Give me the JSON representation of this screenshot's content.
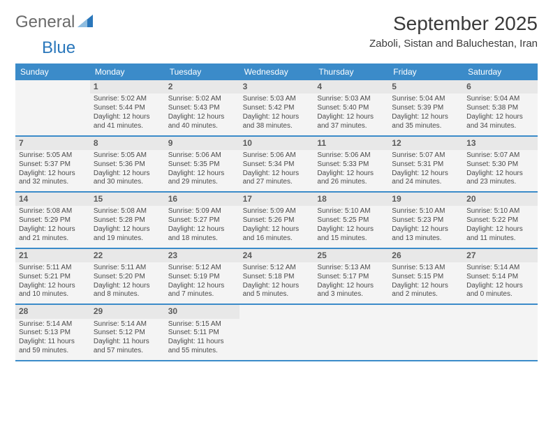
{
  "logo": {
    "part1": "General",
    "part2": "Blue"
  },
  "header": {
    "title": "September 2025",
    "location": "Zaboli, Sistan and Baluchestan, Iran"
  },
  "colors": {
    "header_bg": "#3b8bc9",
    "header_fg": "#ffffff",
    "body_bg": "#ffffff",
    "cell_bg": "#f4f4f4",
    "daynum_bg": "#e8e8e8",
    "text": "#4a4a4a"
  },
  "day_names": [
    "Sunday",
    "Monday",
    "Tuesday",
    "Wednesday",
    "Thursday",
    "Friday",
    "Saturday"
  ],
  "weeks": [
    [
      null,
      {
        "n": "1",
        "sr": "5:02 AM",
        "ss": "5:44 PM",
        "dl": "12 hours and 41 minutes."
      },
      {
        "n": "2",
        "sr": "5:02 AM",
        "ss": "5:43 PM",
        "dl": "12 hours and 40 minutes."
      },
      {
        "n": "3",
        "sr": "5:03 AM",
        "ss": "5:42 PM",
        "dl": "12 hours and 38 minutes."
      },
      {
        "n": "4",
        "sr": "5:03 AM",
        "ss": "5:40 PM",
        "dl": "12 hours and 37 minutes."
      },
      {
        "n": "5",
        "sr": "5:04 AM",
        "ss": "5:39 PM",
        "dl": "12 hours and 35 minutes."
      },
      {
        "n": "6",
        "sr": "5:04 AM",
        "ss": "5:38 PM",
        "dl": "12 hours and 34 minutes."
      }
    ],
    [
      {
        "n": "7",
        "sr": "5:05 AM",
        "ss": "5:37 PM",
        "dl": "12 hours and 32 minutes."
      },
      {
        "n": "8",
        "sr": "5:05 AM",
        "ss": "5:36 PM",
        "dl": "12 hours and 30 minutes."
      },
      {
        "n": "9",
        "sr": "5:06 AM",
        "ss": "5:35 PM",
        "dl": "12 hours and 29 minutes."
      },
      {
        "n": "10",
        "sr": "5:06 AM",
        "ss": "5:34 PM",
        "dl": "12 hours and 27 minutes."
      },
      {
        "n": "11",
        "sr": "5:06 AM",
        "ss": "5:33 PM",
        "dl": "12 hours and 26 minutes."
      },
      {
        "n": "12",
        "sr": "5:07 AM",
        "ss": "5:31 PM",
        "dl": "12 hours and 24 minutes."
      },
      {
        "n": "13",
        "sr": "5:07 AM",
        "ss": "5:30 PM",
        "dl": "12 hours and 23 minutes."
      }
    ],
    [
      {
        "n": "14",
        "sr": "5:08 AM",
        "ss": "5:29 PM",
        "dl": "12 hours and 21 minutes."
      },
      {
        "n": "15",
        "sr": "5:08 AM",
        "ss": "5:28 PM",
        "dl": "12 hours and 19 minutes."
      },
      {
        "n": "16",
        "sr": "5:09 AM",
        "ss": "5:27 PM",
        "dl": "12 hours and 18 minutes."
      },
      {
        "n": "17",
        "sr": "5:09 AM",
        "ss": "5:26 PM",
        "dl": "12 hours and 16 minutes."
      },
      {
        "n": "18",
        "sr": "5:10 AM",
        "ss": "5:25 PM",
        "dl": "12 hours and 15 minutes."
      },
      {
        "n": "19",
        "sr": "5:10 AM",
        "ss": "5:23 PM",
        "dl": "12 hours and 13 minutes."
      },
      {
        "n": "20",
        "sr": "5:10 AM",
        "ss": "5:22 PM",
        "dl": "12 hours and 11 minutes."
      }
    ],
    [
      {
        "n": "21",
        "sr": "5:11 AM",
        "ss": "5:21 PM",
        "dl": "12 hours and 10 minutes."
      },
      {
        "n": "22",
        "sr": "5:11 AM",
        "ss": "5:20 PM",
        "dl": "12 hours and 8 minutes."
      },
      {
        "n": "23",
        "sr": "5:12 AM",
        "ss": "5:19 PM",
        "dl": "12 hours and 7 minutes."
      },
      {
        "n": "24",
        "sr": "5:12 AM",
        "ss": "5:18 PM",
        "dl": "12 hours and 5 minutes."
      },
      {
        "n": "25",
        "sr": "5:13 AM",
        "ss": "5:17 PM",
        "dl": "12 hours and 3 minutes."
      },
      {
        "n": "26",
        "sr": "5:13 AM",
        "ss": "5:15 PM",
        "dl": "12 hours and 2 minutes."
      },
      {
        "n": "27",
        "sr": "5:14 AM",
        "ss": "5:14 PM",
        "dl": "12 hours and 0 minutes."
      }
    ],
    [
      {
        "n": "28",
        "sr": "5:14 AM",
        "ss": "5:13 PM",
        "dl": "11 hours and 59 minutes."
      },
      {
        "n": "29",
        "sr": "5:14 AM",
        "ss": "5:12 PM",
        "dl": "11 hours and 57 minutes."
      },
      {
        "n": "30",
        "sr": "5:15 AM",
        "ss": "5:11 PM",
        "dl": "11 hours and 55 minutes."
      },
      null,
      null,
      null,
      null
    ]
  ],
  "labels": {
    "sunrise": "Sunrise:",
    "sunset": "Sunset:",
    "daylight": "Daylight:"
  }
}
